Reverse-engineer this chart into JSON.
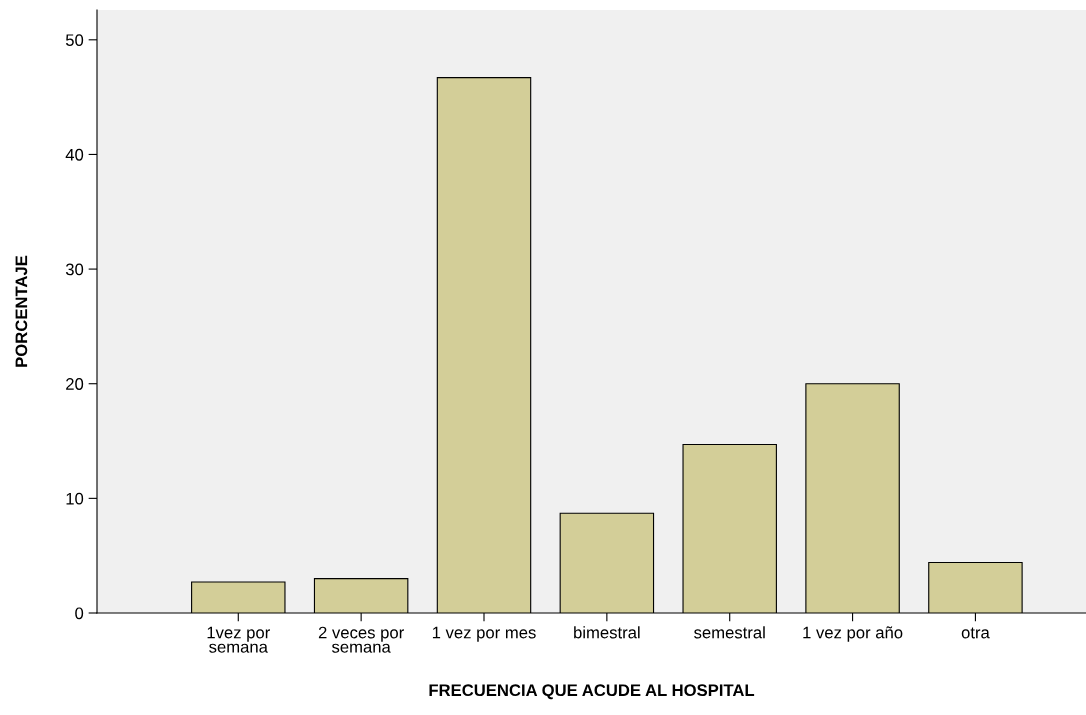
{
  "chart_data": {
    "type": "bar",
    "xlabel": "FRECUENCIA QUE ACUDE AL HOSPITAL",
    "ylabel": "PORCENTAJE",
    "categories": [
      "1vez por\nsemana",
      "2 veces por\nsemana",
      "1 vez por mes",
      "bimestral",
      "semestral",
      "1 vez por año",
      "otra"
    ],
    "values": [
      2.7,
      3.0,
      46.7,
      8.7,
      14.7,
      20.0,
      4.4
    ],
    "color": "#d3ce98",
    "ylim": [
      0,
      52.6
    ],
    "yticks": [
      0,
      10,
      20,
      30,
      40,
      50
    ],
    "grid": false
  }
}
